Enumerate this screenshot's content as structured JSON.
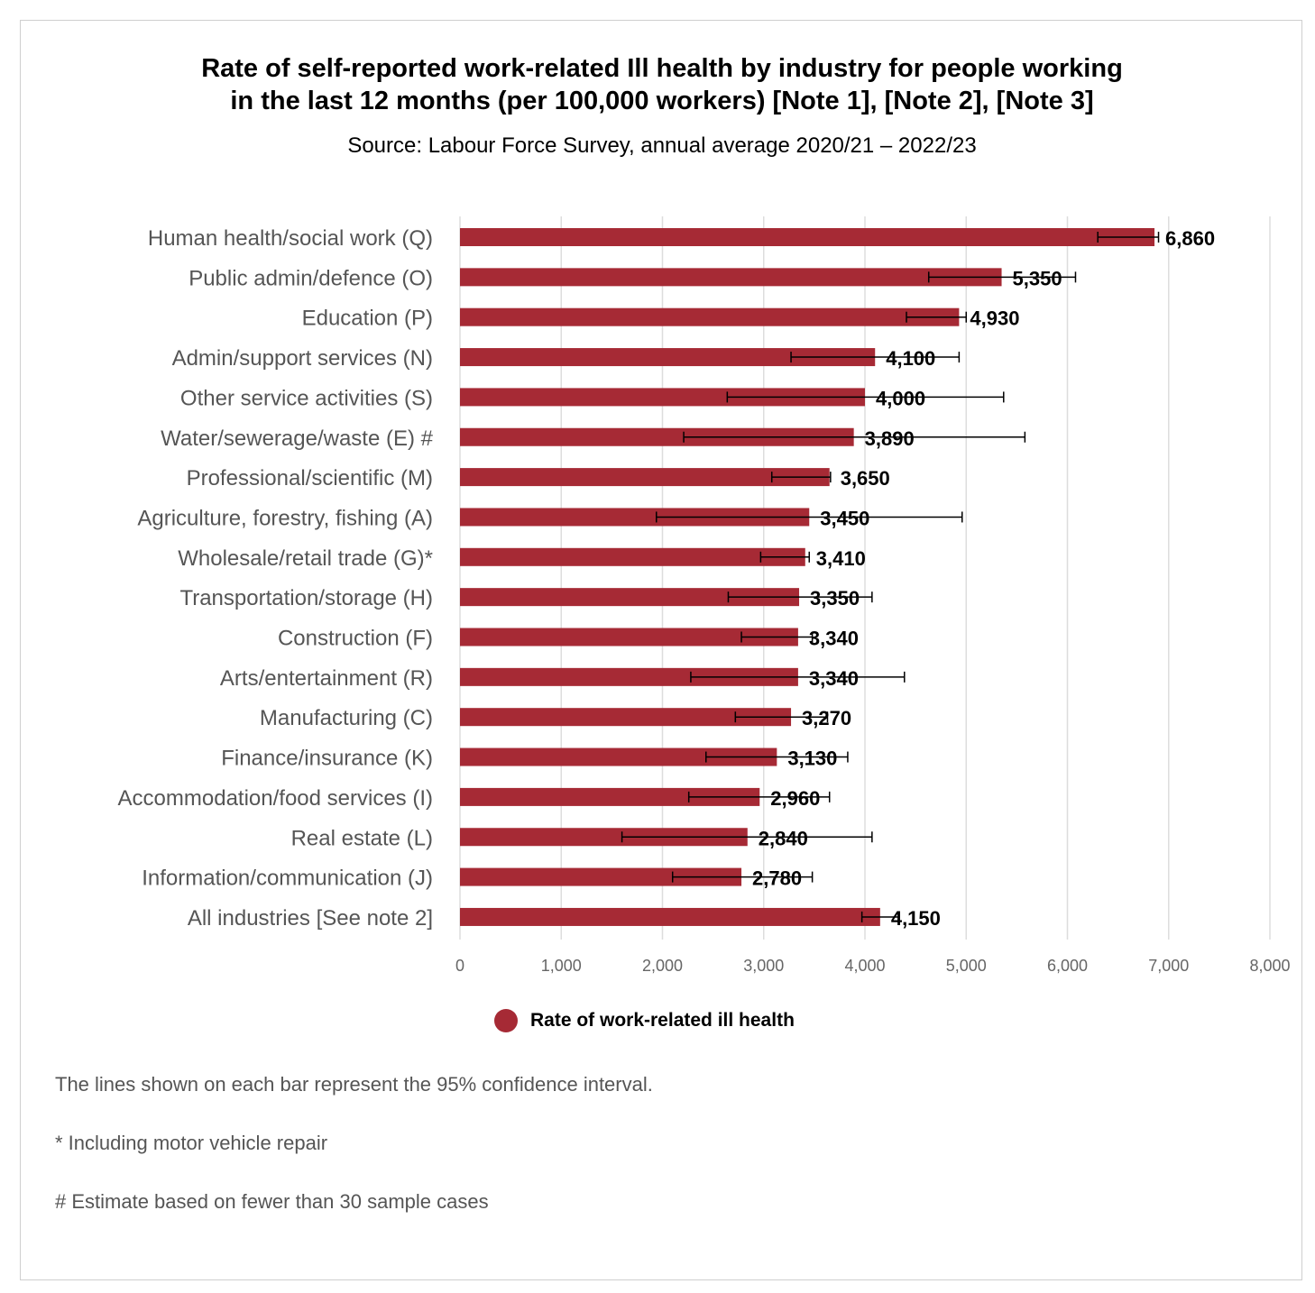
{
  "title_lines": [
    "Rate of self-reported work-related Ill health by industry for people working",
    "in the last 12 months (per 100,000 workers) [Note 1], [Note 2], [Note 3]"
  ],
  "subtitle": "Source: Labour Force Survey, annual average 2020/21 – 2022/23",
  "colors": {
    "bar": "#a62a35",
    "grid": "#dddddd",
    "error": "#000000"
  },
  "legend": {
    "label": "Rate of work-related ill health",
    "marker": "circle"
  },
  "notes": [
    "The lines shown on each bar represent the 95% confidence interval.",
    "* Including motor vehicle repair",
    "# Estimate based on fewer than 30 sample cases"
  ],
  "chart_data": {
    "type": "bar",
    "orientation": "horizontal",
    "title": "Rate of self-reported work-related Ill health by industry for people working in the last 12 months (per 100,000 workers) [Note 1], [Note 2], [Note 3]",
    "subtitle": "Source: Labour Force Survey, annual average 2020/21 – 2022/23",
    "xlabel": "",
    "ylabel": "",
    "xlim": [
      0,
      8000
    ],
    "xticks": [
      0,
      1000,
      2000,
      3000,
      4000,
      5000,
      6000,
      7000,
      8000
    ],
    "xtick_labels": [
      "0",
      "1,000",
      "2,000",
      "3,000",
      "4,000",
      "5,000",
      "6,000",
      "7,000",
      "8,000"
    ],
    "grid": true,
    "legend_position": "bottom",
    "categories": [
      "Human health/social work (Q)",
      "Public admin/defence (O)",
      "Education (P)",
      "Admin/support services (N)",
      "Other service activities (S)",
      "Water/sewerage/waste (E) #",
      "Professional/scientific (M)",
      "Agriculture, forestry, fishing (A)",
      "Wholesale/retail trade (G)*",
      "Transportation/storage (H)",
      "Construction (F)",
      "Arts/entertainment (R)",
      "Manufacturing (C)",
      "Finance/insurance (K)",
      "Accommodation/food services (I)",
      "Real estate (L)",
      "Information/communication (J)",
      "All industries [See note 2]"
    ],
    "series": [
      {
        "name": "Rate of work-related ill health",
        "values": [
          6860,
          5350,
          4930,
          4100,
          4000,
          3890,
          3650,
          3450,
          3410,
          3350,
          3340,
          3340,
          3270,
          3130,
          2960,
          2840,
          2780,
          4150
        ],
        "value_labels": [
          "6,860",
          "5,350",
          "4,930",
          "4,100",
          "4,000",
          "3,890",
          "3,650",
          "3,450",
          "3,410",
          "3,350",
          "3,340",
          "3,340",
          "3,270",
          "3,130",
          "2,960",
          "2,840",
          "2,780",
          "4,150"
        ],
        "ci_low": [
          6300,
          4630,
          4410,
          3270,
          2640,
          2210,
          3080,
          1940,
          2970,
          2650,
          2780,
          2280,
          2720,
          2430,
          2260,
          1600,
          2100,
          3970
        ],
        "ci_high": [
          6900,
          6080,
          5000,
          4930,
          5370,
          5580,
          3660,
          4960,
          3450,
          4070,
          3480,
          4390,
          3630,
          3830,
          3650,
          4070,
          3480,
          4330
        ]
      }
    ]
  }
}
